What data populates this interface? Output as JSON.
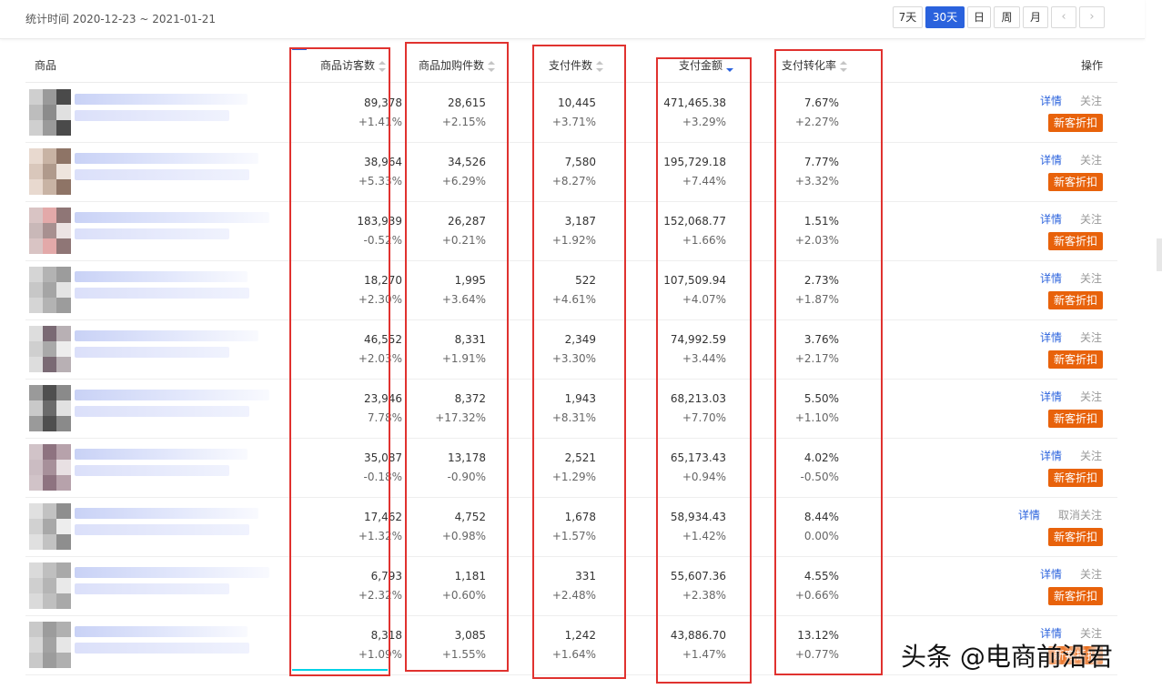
{
  "header": {
    "stat_time_label": "统计时间 2020-12-23 ~ 2021-01-21",
    "periods": [
      "7天",
      "30天",
      "日",
      "周",
      "月"
    ],
    "active_period": "30天",
    "prev_icon": "chevron-left-icon",
    "next_icon": "chevron-right-icon"
  },
  "columns": {
    "product": "商品",
    "visitors": "商品访客数",
    "cart_adds": "商品加购件数",
    "paid_items": "支付件数",
    "paid_amount": "支付金额",
    "conversion": "支付转化率",
    "actions": "操作"
  },
  "sort": {
    "column": "支付金额",
    "order": "desc"
  },
  "rows": [
    {
      "visitors": "89,378",
      "visitors_chg": "+1.41%",
      "cart": "28,615",
      "cart_chg": "+2.15%",
      "items": "10,445",
      "items_chg": "+3.71%",
      "amount": "471,465.38",
      "amount_chg": "+3.29%",
      "conv": "7.67%",
      "conv_chg": "+2.27%",
      "detail": "详情",
      "follow": "关注",
      "discount": "新客折扣"
    },
    {
      "visitors": "38,964",
      "visitors_chg": "+5.33%",
      "cart": "34,526",
      "cart_chg": "+6.29%",
      "items": "7,580",
      "items_chg": "+8.27%",
      "amount": "195,729.18",
      "amount_chg": "+7.44%",
      "conv": "7.77%",
      "conv_chg": "+3.32%",
      "detail": "详情",
      "follow": "关注",
      "discount": "新客折扣"
    },
    {
      "visitors": "183,939",
      "visitors_chg": "-0.52%",
      "cart": "26,287",
      "cart_chg": "+0.21%",
      "items": "3,187",
      "items_chg": "+1.92%",
      "amount": "152,068.77",
      "amount_chg": "+1.66%",
      "conv": "1.51%",
      "conv_chg": "+2.03%",
      "detail": "详情",
      "follow": "关注",
      "discount": "新客折扣"
    },
    {
      "visitors": "18,270",
      "visitors_chg": "+2.30%",
      "cart": "1,995",
      "cart_chg": "+3.64%",
      "items": "522",
      "items_chg": "+4.61%",
      "amount": "107,509.94",
      "amount_chg": "+4.07%",
      "conv": "2.73%",
      "conv_chg": "+1.87%",
      "detail": "详情",
      "follow": "关注",
      "discount": "新客折扣"
    },
    {
      "visitors": "46,552",
      "visitors_chg": "+2.03%",
      "cart": "8,331",
      "cart_chg": "+1.91%",
      "items": "2,349",
      "items_chg": "+3.30%",
      "amount": "74,992.59",
      "amount_chg": "+3.44%",
      "conv": "3.76%",
      "conv_chg": "+2.17%",
      "detail": "详情",
      "follow": "关注",
      "discount": "新客折扣"
    },
    {
      "visitors": "23,946",
      "visitors_chg": "7.78%",
      "cart": "8,372",
      "cart_chg": "+17.32%",
      "items": "1,943",
      "items_chg": "+8.31%",
      "amount": "68,213.03",
      "amount_chg": "+7.70%",
      "conv": "5.50%",
      "conv_chg": "+1.10%",
      "detail": "详情",
      "follow": "关注",
      "discount": "新客折扣"
    },
    {
      "visitors": "35,087",
      "visitors_chg": "-0.18%",
      "cart": "13,178",
      "cart_chg": "-0.90%",
      "items": "2,521",
      "items_chg": "+1.29%",
      "amount": "65,173.43",
      "amount_chg": "+0.94%",
      "conv": "4.02%",
      "conv_chg": "-0.50%",
      "detail": "详情",
      "follow": "关注",
      "discount": "新客折扣"
    },
    {
      "visitors": "17,462",
      "visitors_chg": "+1.32%",
      "cart": "4,752",
      "cart_chg": "+0.98%",
      "items": "1,678",
      "items_chg": "+1.57%",
      "amount": "58,934.43",
      "amount_chg": "+1.42%",
      "conv": "8.44%",
      "conv_chg": "0.00%",
      "detail": "详情",
      "follow": "取消关注",
      "discount": "新客折扣"
    },
    {
      "visitors": "6,793",
      "visitors_chg": "+2.32%",
      "cart": "1,181",
      "cart_chg": "+0.60%",
      "items": "331",
      "items_chg": "+2.48%",
      "amount": "55,607.36",
      "amount_chg": "+2.38%",
      "conv": "4.55%",
      "conv_chg": "+0.66%",
      "detail": "详情",
      "follow": "关注",
      "discount": "新客折扣"
    },
    {
      "visitors": "8,318",
      "visitors_chg": "+1.09%",
      "cart": "3,085",
      "cart_chg": "+1.55%",
      "items": "1,242",
      "items_chg": "+1.64%",
      "amount": "43,886.70",
      "amount_chg": "+1.47%",
      "conv": "13.12%",
      "conv_chg": "+0.77%",
      "detail": "详情",
      "follow": "关注",
      "discount": "新客折扣"
    }
  ],
  "watermark": "头条 @电商前沿君",
  "colors": {
    "accent": "#2a62dd",
    "discount_badge": "#e8620b",
    "highlight_box": "#e0322f"
  }
}
